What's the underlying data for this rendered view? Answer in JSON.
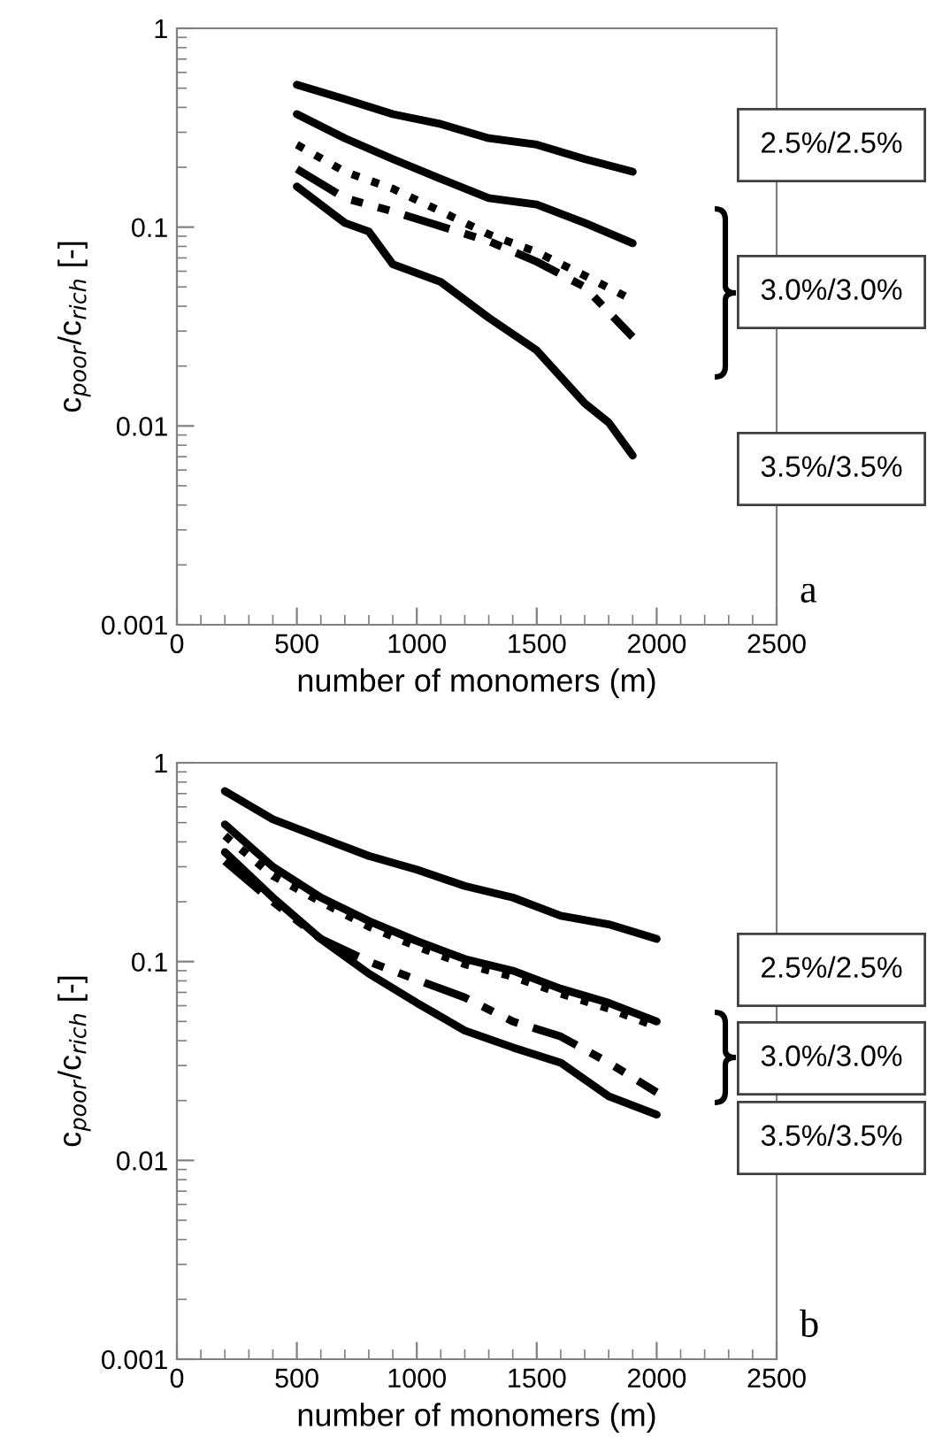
{
  "chart_data": [
    {
      "type": "line",
      "xlabel": "number of monomers (m)",
      "ylabel": "c$_{poor}$/c$_{rich}$ [-]",
      "log": "y",
      "xlim": [
        0,
        2500
      ],
      "ylim": [
        0.001,
        1
      ],
      "xticks": [
        0,
        500,
        1000,
        1500,
        2000,
        2500
      ],
      "yticks": [
        0.001,
        0.01,
        0.1,
        1
      ],
      "grid": false,
      "legend": false,
      "marker": "none",
      "x": [
        500,
        700,
        900,
        1100,
        1300,
        1500,
        1700,
        1900
      ],
      "annotations": [
        "2.5%/2.5%",
        "3.0%/3.0%",
        "3.5%/3.5%",
        "a"
      ],
      "series": [
        {
          "color": "#000000",
          "line_style": "solid",
          "values": [
            0.52,
            0.44,
            0.37,
            0.33,
            0.28,
            0.26,
            0.22,
            0.19
          ]
        },
        {
          "color": "#000000",
          "line_style": "solid",
          "values": [
            0.37,
            0.28,
            0.22,
            0.175,
            0.14,
            0.13,
            0.105,
            0.083
          ]
        },
        {
          "color": "#000000",
          "line_style": "dotted",
          "values": [
            0.26,
            0.19,
            0.156,
            0.12,
            0.092,
            0.075,
            0.057,
            0.043
          ]
        },
        {
          "color": "#000000",
          "line_style": "dashdot",
          "values": [
            0.196,
            0.14,
            0.12,
            0.101,
            0.085,
            0.067,
            0.05,
            0.028
          ]
        },
        {
          "color": "#000000",
          "line_style": "solid",
          "x": [
            500,
            700,
            800,
            900,
            1100,
            1300,
            1500,
            1700,
            1800,
            1900
          ],
          "values": [
            0.16,
            0.105,
            0.095,
            0.065,
            0.053,
            0.035,
            0.024,
            0.013,
            0.0104,
            0.0071
          ]
        }
      ]
    },
    {
      "type": "line",
      "xlabel": "number of monomers (m)",
      "ylabel": "c$_{poor}$/c$_{rich}$ [-]",
      "log": "y",
      "xlim": [
        0,
        2500
      ],
      "ylim": [
        0.001,
        1
      ],
      "xticks": [
        0,
        500,
        1000,
        1500,
        2000,
        2500
      ],
      "yticks": [
        0.001,
        0.01,
        0.1,
        1
      ],
      "grid": false,
      "legend": false,
      "marker": "none",
      "x": [
        200,
        400,
        600,
        800,
        1000,
        1200,
        1400,
        1600,
        1800,
        2000
      ],
      "annotations": [
        "2.5%/2.5%",
        "3.0%/3.0%",
        "3.5%/3.5%",
        "b"
      ],
      "series": [
        {
          "color": "#000000",
          "line_style": "solid",
          "values": [
            0.72,
            0.52,
            0.42,
            0.34,
            0.29,
            0.24,
            0.21,
            0.17,
            0.154,
            0.13
          ]
        },
        {
          "color": "#000000",
          "line_style": "solid",
          "values": [
            0.49,
            0.3,
            0.21,
            0.16,
            0.127,
            0.103,
            0.09,
            0.073,
            0.062,
            0.05
          ]
        },
        {
          "color": "#000000",
          "line_style": "dotted",
          "values": [
            0.43,
            0.27,
            0.2,
            0.15,
            0.119,
            0.097,
            0.084,
            0.069,
            0.058,
            0.047
          ]
        },
        {
          "color": "#000000",
          "line_style": "dashdot",
          "values": [
            0.32,
            0.2,
            0.13,
            0.1,
            0.081,
            0.066,
            0.05,
            0.042,
            0.031,
            0.022
          ]
        },
        {
          "color": "#000000",
          "line_style": "solid",
          "values": [
            0.355,
            0.21,
            0.13,
            0.087,
            0.062,
            0.045,
            0.037,
            0.031,
            0.021,
            0.017
          ]
        }
      ]
    }
  ]
}
